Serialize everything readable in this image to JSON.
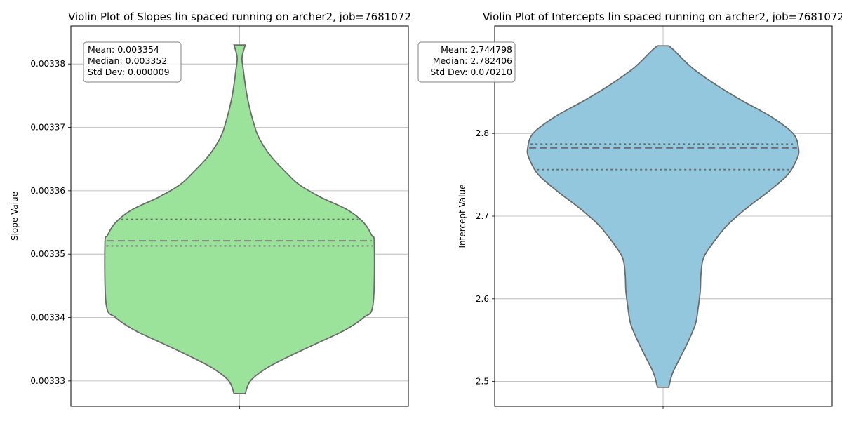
{
  "chart_data": [
    {
      "type": "violin",
      "title": "Violin Plot of Slopes lin spaced running on archer2, job=7681072",
      "xlabel": "",
      "ylabel": "Slope Value",
      "ylim": [
        0.003326,
        0.003386
      ],
      "yticks": [
        0.00333,
        0.00334,
        0.00335,
        0.00336,
        0.00337,
        0.00338
      ],
      "ytick_labels": [
        "0.00333",
        "0.00334",
        "0.00335",
        "0.00336",
        "0.00337",
        "0.00338"
      ],
      "grid": true,
      "color": "#9be29b",
      "edge_color": "#6b6b6b",
      "range": [
        0.003328,
        0.003383
      ],
      "density_profile": [
        [
          0.003328,
          0.02
        ],
        [
          0.00333,
          0.06
        ],
        [
          0.003332,
          0.16
        ],
        [
          0.003334,
          0.33
        ],
        [
          0.003336,
          0.57
        ],
        [
          0.003338,
          0.8
        ],
        [
          0.00334,
          0.95
        ],
        [
          0.003342,
          1.0
        ],
        [
          0.003344,
          0.95
        ],
        [
          0.003346,
          0.8
        ],
        [
          0.003348,
          0.6
        ],
        [
          0.00335,
          0.42
        ],
        [
          0.003352,
          0.29
        ],
        [
          0.003354,
          0.2
        ],
        [
          0.003356,
          0.12
        ],
        [
          0.003358,
          0.06
        ],
        [
          0.00336,
          0.03
        ],
        [
          0.003362,
          0.015
        ],
        [
          0.003364,
          0.015
        ],
        [
          0.003366,
          0.01
        ]
      ],
      "quartiles": {
        "q1": 0.0033513,
        "median": 0.0033521,
        "q3": 0.0033555
      },
      "stats_lines": [
        "Mean: 0.003354",
        "Median: 0.003352",
        "Std Dev: 0.000009"
      ]
    },
    {
      "type": "violin",
      "title": "Violin Plot of Intercepts lin spaced running on archer2, job=7681072",
      "xlabel": "",
      "ylabel": "Intercept Value",
      "ylim": [
        2.47,
        2.93
      ],
      "yticks": [
        2.5,
        2.6,
        2.7,
        2.8
      ],
      "ytick_labels": [
        "2.5",
        "2.6",
        "2.7",
        "2.8"
      ],
      "grid": true,
      "color": "#93c7dd",
      "edge_color": "#6b6b6b",
      "range": [
        2.493,
        2.906
      ],
      "quartiles": {
        "q1": 2.7563,
        "median": 2.7824,
        "q3": 2.7872
      },
      "stats_lines": [
        "Mean: 2.744798",
        "Median: 2.782406",
        "Std Dev: 0.070210"
      ]
    }
  ]
}
